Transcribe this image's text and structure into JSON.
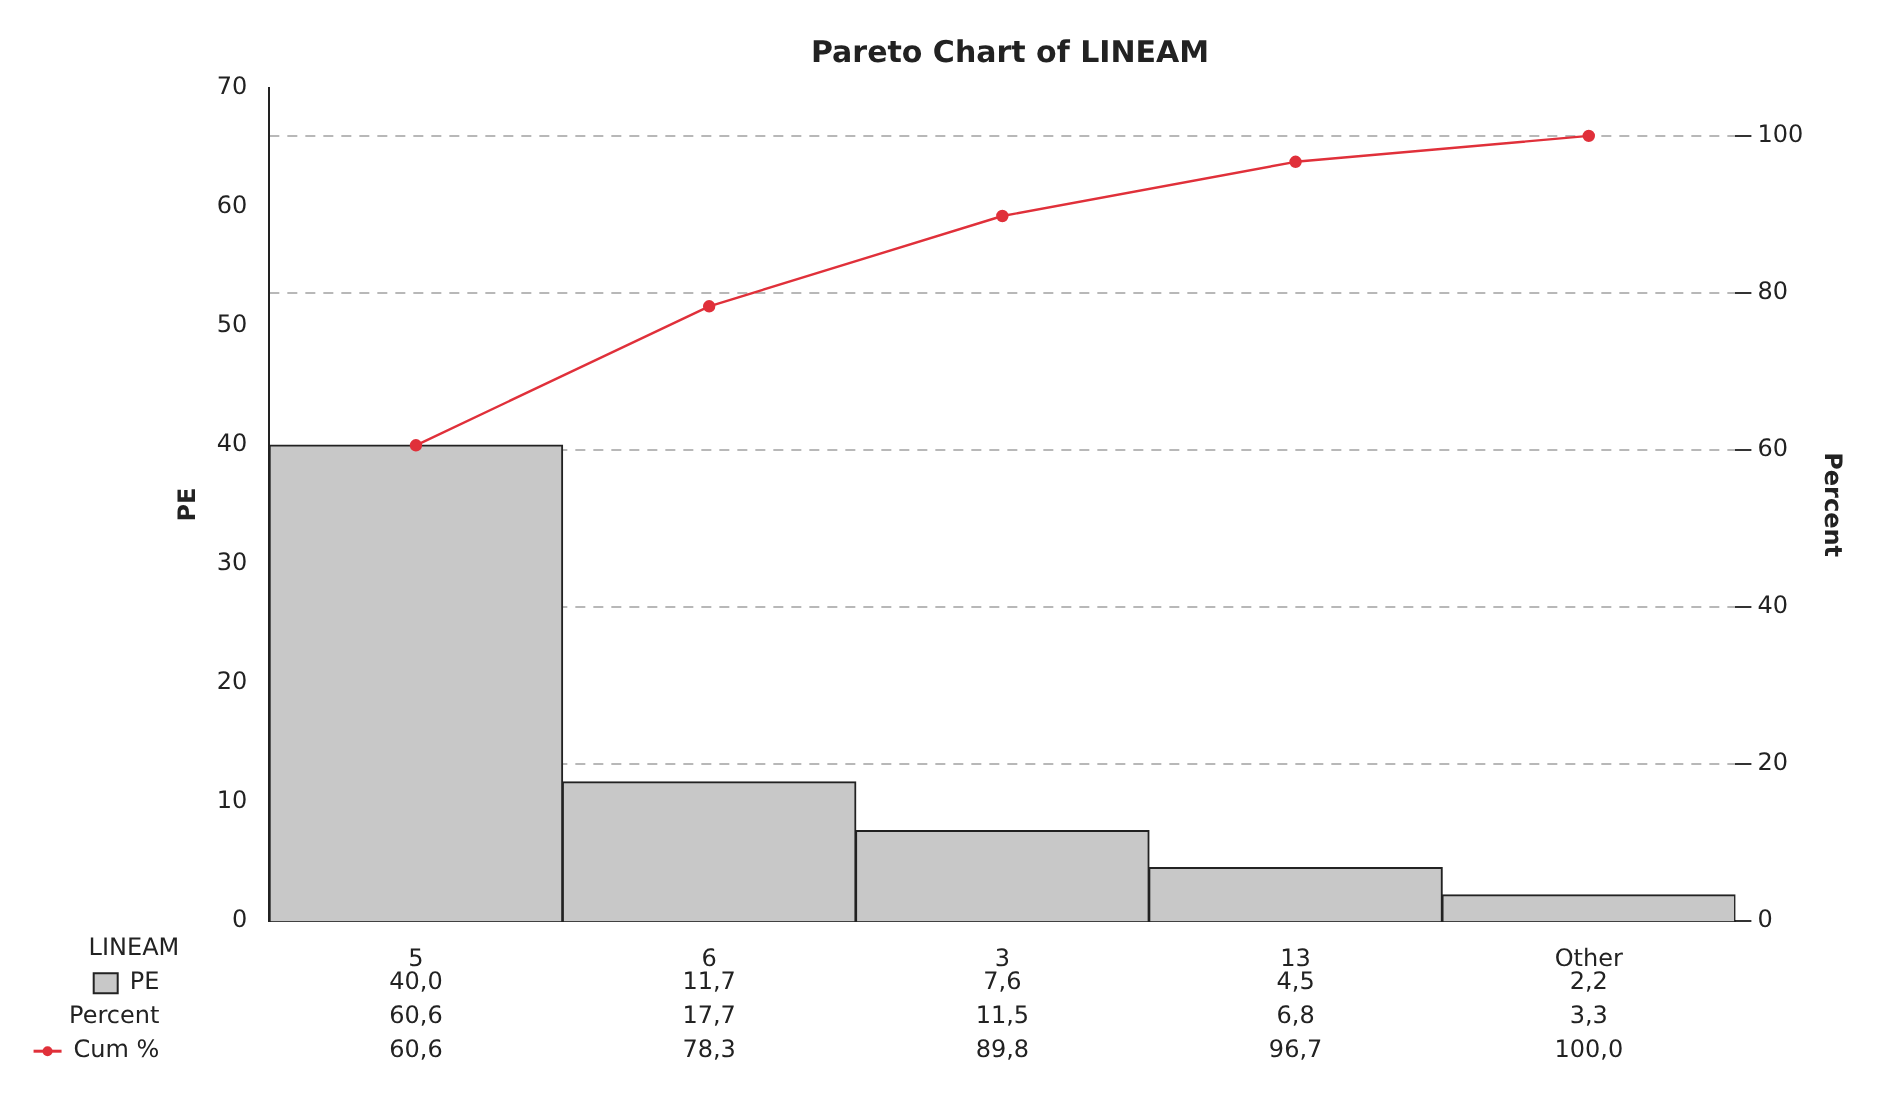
{
  "chart_data": {
    "type": "bar",
    "title": "Pareto Chart of LINEAM",
    "xlabel": "LINEAM",
    "ylabel": "PE",
    "y2label": "Percent",
    "categories": [
      "5",
      "6",
      "3",
      "13",
      "Other"
    ],
    "series": [
      {
        "name": "PE",
        "color": "#c8c8c8",
        "values": [
          40.0,
          11.7,
          7.6,
          4.5,
          2.2
        ],
        "value_labels": [
          "40,0",
          "11,7",
          "7,6",
          "4,5",
          "2,2"
        ]
      },
      {
        "name": "Cum %",
        "type": "line",
        "axis": "y2",
        "color": "#e0303a",
        "values": [
          60.6,
          78.3,
          89.8,
          96.7,
          100.0
        ],
        "value_labels": [
          "60,6",
          "78,3",
          "89,8",
          "96,7",
          "100,0"
        ]
      }
    ],
    "annotations": [
      "Percent",
      "60,6",
      "17,7",
      "11,5",
      "6,8",
      "3,3"
    ],
    "ylim": [
      0,
      70
    ],
    "yticks": [
      0,
      10,
      20,
      30,
      40,
      50,
      60,
      70
    ],
    "y2lim": [
      0,
      106.1
    ],
    "y2ticks": [
      0,
      20,
      40,
      60,
      80,
      100
    ],
    "grid": "y2",
    "legend": "bottom left",
    "marker": "circle",
    "line_style": "solid"
  }
}
